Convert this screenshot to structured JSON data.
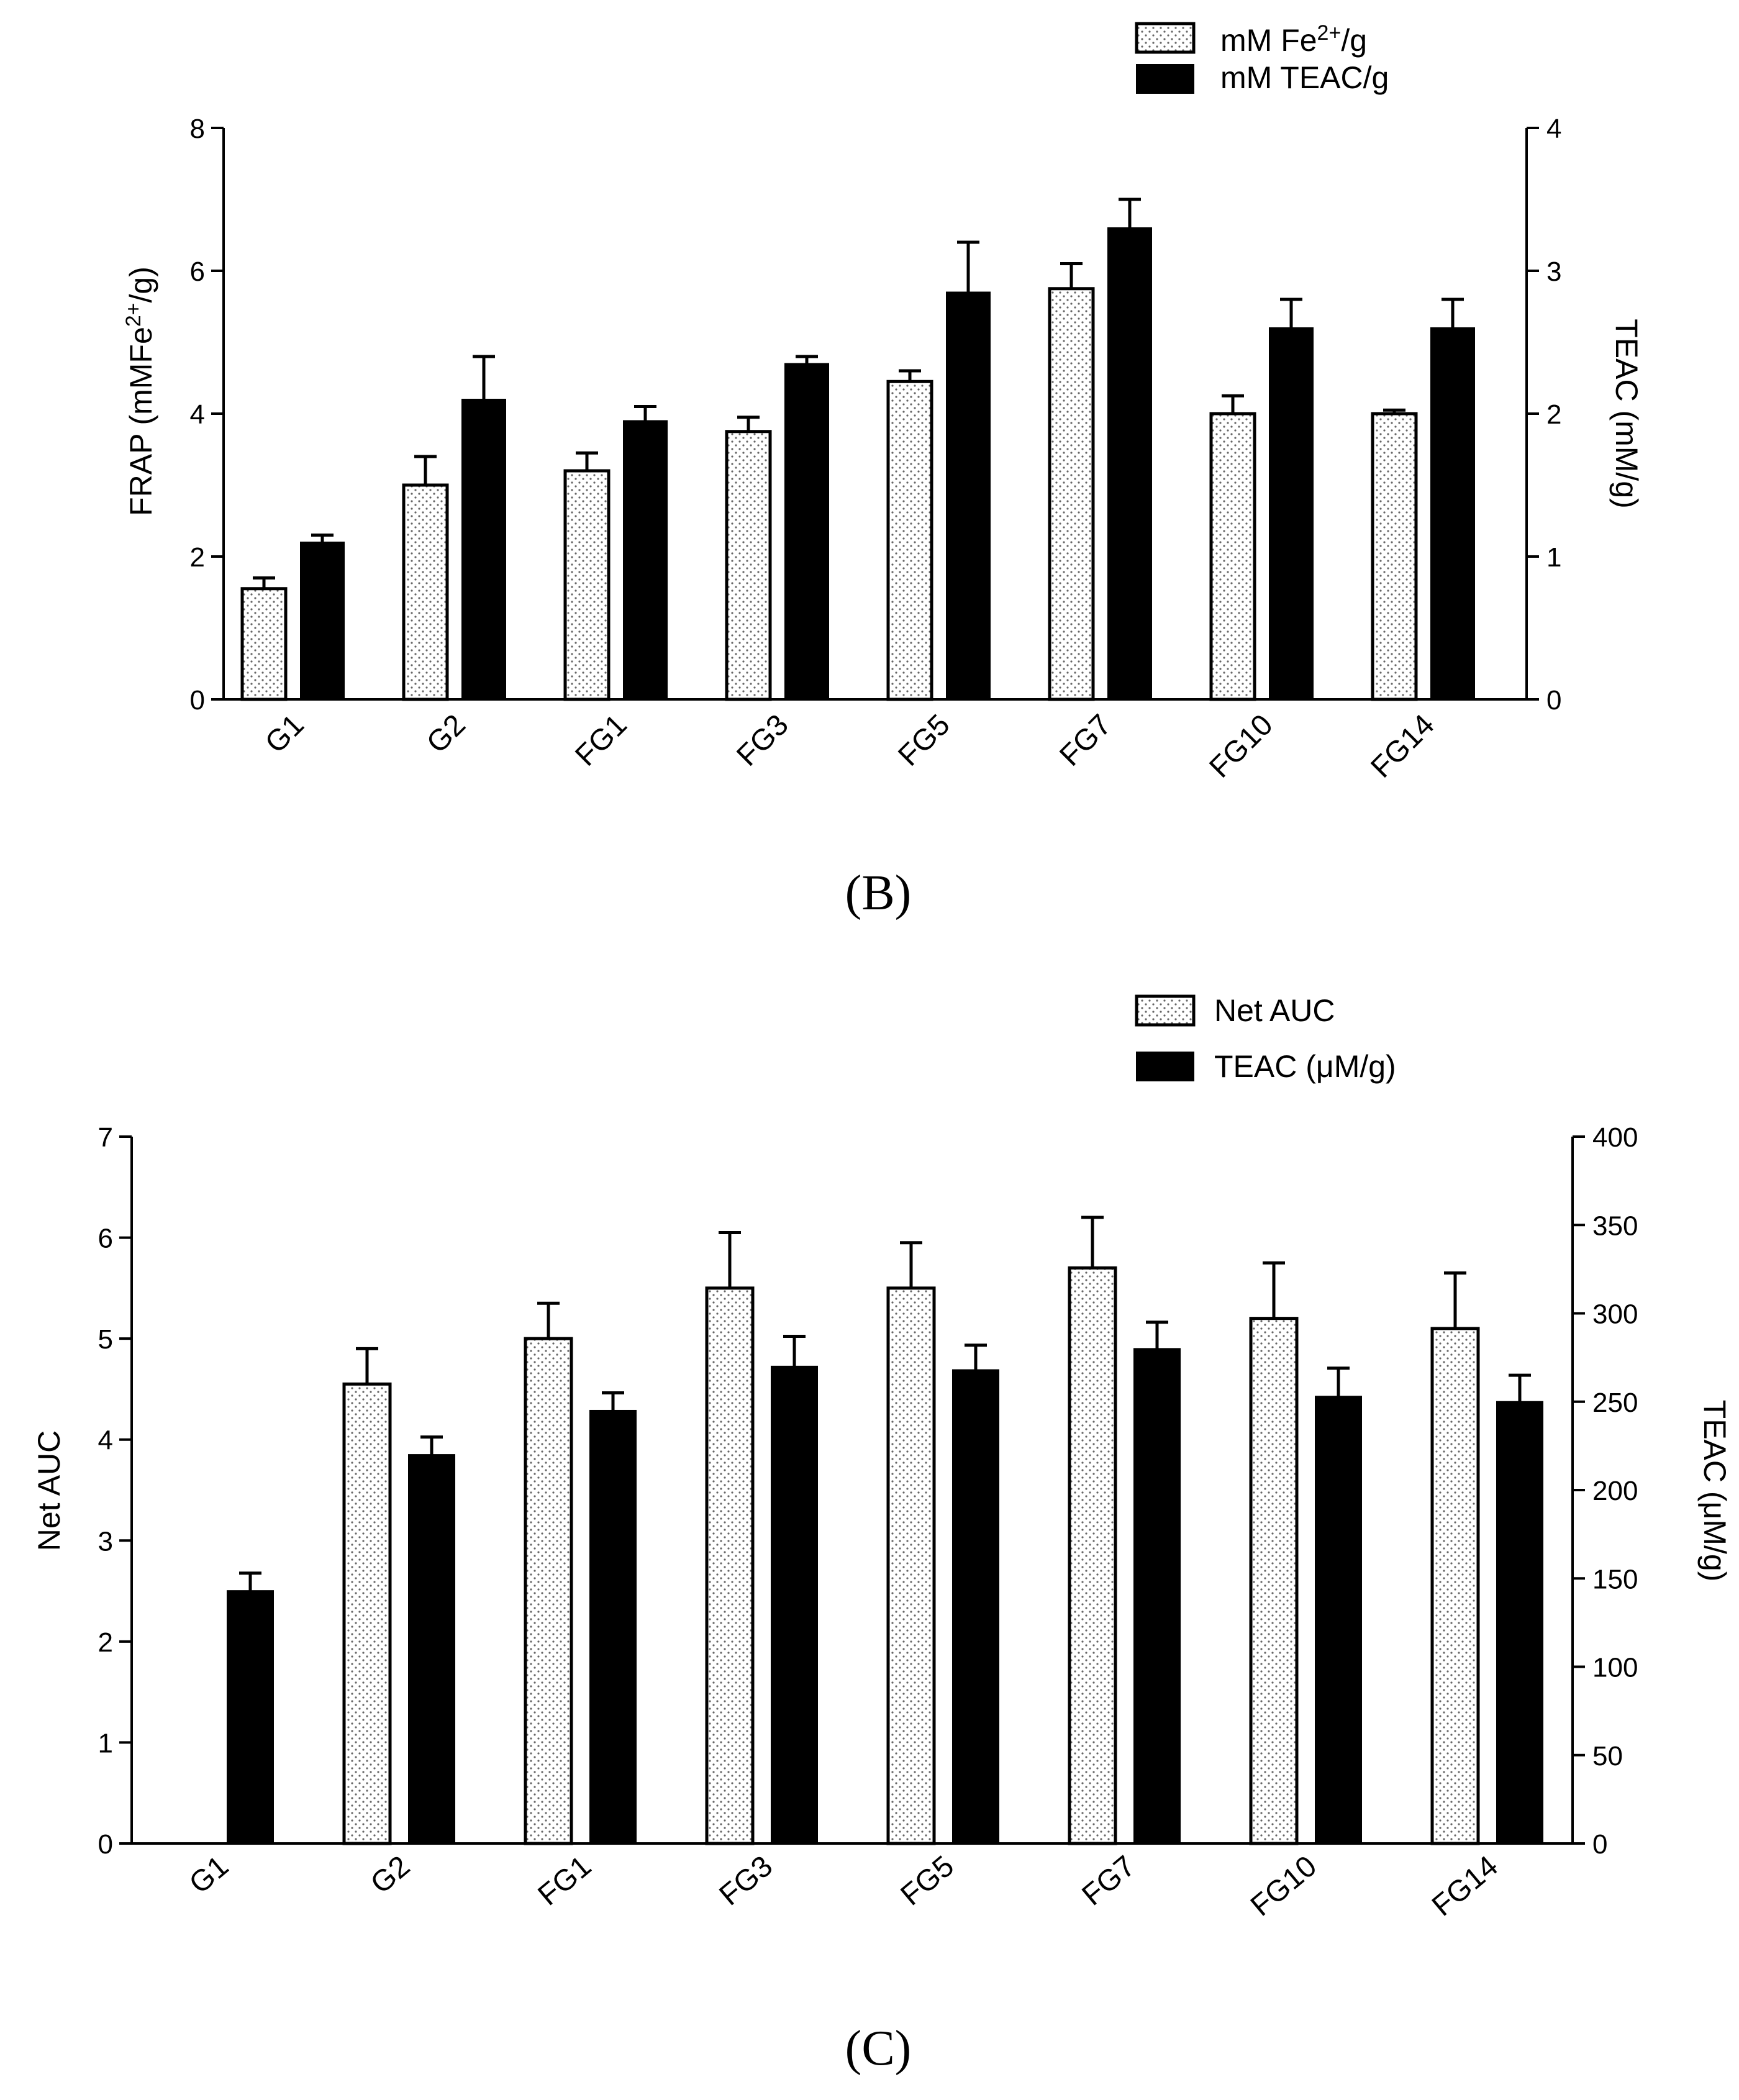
{
  "chart_data": [
    {
      "type": "bar",
      "panel_label": "(B)",
      "categories": [
        "G1",
        "G2",
        "FG1",
        "FG3",
        "FG5",
        "FG7",
        "FG10",
        "FG14"
      ],
      "series": [
        {
          "name": "mM Fe2+/g",
          "axis": "left",
          "style": "dotted",
          "values": [
            1.55,
            3.0,
            3.2,
            3.75,
            4.45,
            5.75,
            4.0,
            4.0
          ],
          "errors": [
            0.15,
            0.4,
            0.25,
            0.2,
            0.15,
            0.35,
            0.25,
            0.05
          ]
        },
        {
          "name": "mM TEAC/g",
          "axis": "right",
          "style": "solid",
          "values": [
            1.1,
            2.1,
            1.95,
            2.35,
            2.85,
            3.3,
            2.6,
            2.6
          ],
          "errors": [
            0.05,
            0.3,
            0.1,
            0.05,
            0.35,
            0.2,
            0.2,
            0.2
          ]
        }
      ],
      "legend": {
        "entries": [
          {
            "label_main": "mM Fe",
            "label_sup": "2+",
            "label_tail": "/g",
            "style": "dotted"
          },
          {
            "label_main": "mM TEAC/g",
            "label_sup": "",
            "label_tail": "",
            "style": "solid"
          }
        ],
        "placement": "top-right"
      },
      "ylabel_left": {
        "main": "FRAP (mMFe",
        "sup": "2+",
        "tail": "/g)"
      },
      "ylabel_right": "TEAC (mM/g)",
      "ylim_left": [
        0,
        8
      ],
      "yticks_left": [
        0,
        2,
        4,
        6,
        8
      ],
      "ylim_right": [
        0,
        4
      ],
      "yticks_right": [
        0,
        1,
        2,
        3,
        4
      ]
    },
    {
      "type": "bar",
      "panel_label": "(C)",
      "categories": [
        "G1",
        "G2",
        "FG1",
        "FG3",
        "FG5",
        "FG7",
        "FG10",
        "FG14"
      ],
      "series": [
        {
          "name": "Net AUC",
          "axis": "left",
          "style": "dotted",
          "values": [
            null,
            4.55,
            5.0,
            5.5,
            5.5,
            5.7,
            5.2,
            5.1
          ],
          "errors": [
            null,
            0.35,
            0.35,
            0.55,
            0.45,
            0.5,
            0.55,
            0.55
          ]
        },
        {
          "name": "TEAC (μM/g)",
          "axis": "right",
          "style": "solid",
          "values": [
            143,
            220,
            245,
            270,
            268,
            280,
            253,
            250
          ],
          "errors": [
            10,
            10,
            10,
            17,
            14,
            15,
            16,
            15
          ]
        }
      ],
      "legend": {
        "entries": [
          {
            "label_main": "Net AUC",
            "label_sup": "",
            "label_tail": "",
            "style": "dotted"
          },
          {
            "label_main": "TEAC (μM/g)",
            "label_sup": "",
            "label_tail": "",
            "style": "solid"
          }
        ],
        "placement": "top-right"
      },
      "ylabel_left": {
        "main": "Net  AUC",
        "sup": "",
        "tail": ""
      },
      "ylabel_right": "TEAC (μM/g)",
      "ylim_left": [
        0,
        7
      ],
      "yticks_left": [
        0,
        1,
        2,
        3,
        4,
        5,
        6,
        7
      ],
      "ylim_right": [
        0,
        400
      ],
      "yticks_right": [
        0,
        50,
        100,
        150,
        200,
        250,
        300,
        350,
        400
      ]
    }
  ],
  "colors": {
    "solid": "#000000",
    "dotted_fill": "#ffffff",
    "dots": "#666666"
  }
}
